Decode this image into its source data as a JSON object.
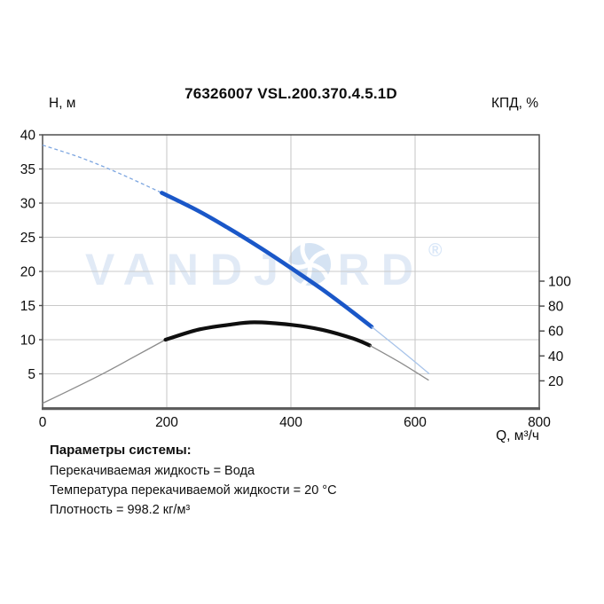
{
  "header": {
    "title": "76326007 VSL.200.370.4.5.1D"
  },
  "watermark": {
    "text_left": "VANDJ",
    "text_right": "RD",
    "registered": "®",
    "color": "#e1eaf6",
    "impeller_icon": "pump-impeller"
  },
  "chart_data": {
    "type": "line",
    "title": "76326007 VSL.200.370.4.5.1D",
    "grid": true,
    "x_axis": {
      "label": "Q, м³/ч",
      "min": 0,
      "max": 800,
      "ticks": [
        0,
        200,
        400,
        600,
        800
      ]
    },
    "y_axis_left": {
      "label": "Н, м",
      "min": 0,
      "max": 40,
      "ticks": [
        40,
        35,
        30,
        25,
        20,
        15,
        10,
        5
      ]
    },
    "y_axis_right": {
      "label": "КПД, %",
      "ticks": [
        100,
        80,
        60,
        40,
        20
      ]
    },
    "series": [
      {
        "name": "head-curve",
        "axis": "left",
        "thick_color": "#1a57c8",
        "dash_color": "#7da6e0",
        "thin_color": "#a8c4ea",
        "segments": [
          {
            "style": "dashed-thin",
            "points": [
              [
                0,
                38.5
              ],
              [
                60,
                36.7
              ],
              [
                120,
                34.5
              ],
              [
                192,
                31.5
              ]
            ]
          },
          {
            "style": "thick",
            "points": [
              [
                192,
                31.5
              ],
              [
                250,
                28.9
              ],
              [
                300,
                26.3
              ],
              [
                350,
                23.5
              ],
              [
                400,
                20.5
              ],
              [
                450,
                17.4
              ],
              [
                490,
                14.7
              ],
              [
                530,
                11.9
              ]
            ]
          },
          {
            "style": "thin",
            "points": [
              [
                530,
                11.9
              ],
              [
                575,
                8.6
              ],
              [
                623,
                5.0
              ]
            ]
          }
        ]
      },
      {
        "name": "efficiency-curve",
        "axis": "right",
        "thick_color": "#0f0f0f",
        "dash_color": "#8c8c8c",
        "thin_color": "#8c8c8c",
        "segments": [
          {
            "style": "thin",
            "points": [
              [
                0,
                2
              ],
              [
                50,
                14
              ],
              [
                100,
                26.5
              ],
              [
                150,
                40
              ],
              [
                198,
                53
              ]
            ]
          },
          {
            "style": "thick",
            "points": [
              [
                198,
                53
              ],
              [
                250,
                61
              ],
              [
                300,
                65
              ],
              [
                341,
                67
              ],
              [
                400,
                65
              ],
              [
                450,
                61
              ],
              [
                500,
                54
              ],
              [
                527,
                48.5
              ]
            ]
          },
          {
            "style": "thin",
            "points": [
              [
                527,
                48.5
              ],
              [
                575,
                35
              ],
              [
                622,
                20.5
              ]
            ]
          }
        ]
      }
    ]
  },
  "parameters": {
    "heading": "Параметры системы:",
    "lines": [
      "Перекачиваемая жидкость = Вода",
      "Температура перекачиваемой жидкости = 20 °C",
      "Плотность = 998.2 кг/м³"
    ]
  }
}
